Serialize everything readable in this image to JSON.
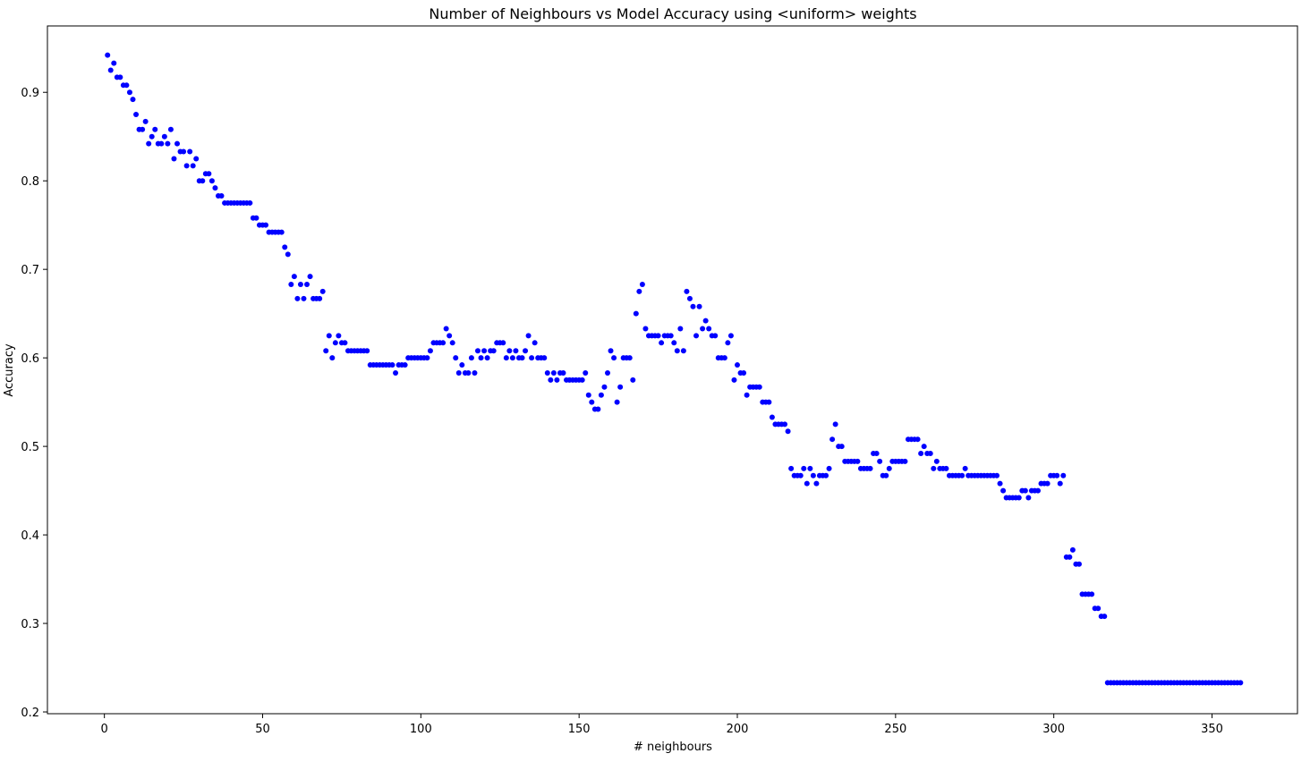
{
  "chart_data": {
    "type": "scatter",
    "title": "Number of Neighbours vs Model Accuracy using <uniform> weights",
    "xlabel": "# neighbours",
    "ylabel": "Accuracy",
    "xlim": [
      -18,
      377
    ],
    "ylim": [
      0.198,
      0.975
    ],
    "xticks": [
      0,
      50,
      100,
      150,
      200,
      250,
      300,
      350
    ],
    "yticks": [
      0.2,
      0.3,
      0.4,
      0.5,
      0.6,
      0.7,
      0.8,
      0.9
    ],
    "grid": false,
    "marker_color": "#0000ff",
    "series": [
      {
        "x": [
          1,
          2,
          3,
          4,
          5,
          6,
          7,
          8,
          9,
          10,
          11,
          12,
          13,
          14,
          15,
          16,
          17,
          18,
          19,
          20,
          21,
          22,
          23,
          24,
          25,
          26,
          27,
          28,
          29,
          30,
          31,
          32,
          33,
          34,
          35,
          36,
          37,
          38,
          39,
          40,
          41,
          42,
          43,
          44,
          45,
          46,
          47,
          48,
          49,
          50,
          51,
          52,
          53,
          54,
          55,
          56,
          57,
          58,
          59,
          60,
          61,
          62,
          63,
          64,
          65,
          66,
          67,
          68,
          69,
          70,
          71,
          72,
          73,
          74,
          75,
          76,
          77,
          78,
          79,
          80,
          81,
          82,
          83,
          84,
          85,
          86,
          87,
          88,
          89,
          90,
          91,
          92,
          93,
          94,
          95,
          96,
          97,
          98,
          99,
          100,
          101,
          102,
          103,
          104,
          105,
          106,
          107,
          108,
          109,
          110,
          111,
          112,
          113,
          114,
          115,
          116,
          117,
          118,
          119,
          120,
          121,
          122,
          123,
          124,
          125,
          126,
          127,
          128,
          129,
          130,
          131,
          132,
          133,
          134,
          135,
          136,
          137,
          138,
          139,
          140,
          141,
          142,
          143,
          144,
          145,
          146,
          147,
          148,
          149,
          150,
          151,
          152,
          153,
          154,
          155,
          156,
          157,
          158,
          159,
          160,
          161,
          162,
          163,
          164,
          165,
          166,
          167,
          168,
          169,
          170,
          171,
          172,
          173,
          174,
          175,
          176,
          177,
          178,
          179,
          180,
          181,
          182,
          183,
          184,
          185,
          186,
          187,
          188,
          189,
          190,
          191,
          192,
          193,
          194,
          195,
          196,
          197,
          198,
          199,
          200,
          201,
          202,
          203,
          204,
          205,
          206,
          207,
          208,
          209,
          210,
          211,
          212,
          213,
          214,
          215,
          216,
          217,
          218,
          219,
          220,
          221,
          222,
          223,
          224,
          225,
          226,
          227,
          228,
          229,
          230,
          231,
          232,
          233,
          234,
          235,
          236,
          237,
          238,
          239,
          240,
          241,
          242,
          243,
          244,
          245,
          246,
          247,
          248,
          249,
          250,
          251,
          252,
          253,
          254,
          255,
          256,
          257,
          258,
          259,
          260,
          261,
          262,
          263,
          264,
          265,
          266,
          267,
          268,
          269,
          270,
          271,
          272,
          273,
          274,
          275,
          276,
          277,
          278,
          279,
          280,
          281,
          282,
          283,
          284,
          285,
          286,
          287,
          288,
          289,
          290,
          291,
          292,
          293,
          294,
          295,
          296,
          297,
          298,
          299,
          300,
          301,
          302,
          303,
          304,
          305,
          306,
          307,
          308,
          309,
          310,
          311,
          312,
          313,
          314,
          315,
          316,
          317,
          318,
          319,
          320,
          321,
          322,
          323,
          324,
          325,
          326,
          327,
          328,
          329,
          330,
          331,
          332,
          333,
          334,
          335,
          336,
          337,
          338,
          339,
          340,
          341,
          342,
          343,
          344,
          345,
          346,
          347,
          348,
          349,
          350,
          351,
          352,
          353,
          354,
          355,
          356,
          357,
          358,
          359
        ],
        "y": [
          0.942,
          0.925,
          0.933,
          0.917,
          0.917,
          0.908,
          0.908,
          0.9,
          0.892,
          0.875,
          0.858,
          0.858,
          0.867,
          0.842,
          0.85,
          0.858,
          0.842,
          0.842,
          0.85,
          0.842,
          0.858,
          0.825,
          0.842,
          0.833,
          0.833,
          0.817,
          0.833,
          0.817,
          0.825,
          0.8,
          0.8,
          0.808,
          0.808,
          0.8,
          0.792,
          0.783,
          0.783,
          0.775,
          0.775,
          0.775,
          0.775,
          0.775,
          0.775,
          0.775,
          0.775,
          0.775,
          0.758,
          0.758,
          0.75,
          0.75,
          0.75,
          0.742,
          0.742,
          0.742,
          0.742,
          0.742,
          0.725,
          0.717,
          0.683,
          0.692,
          0.667,
          0.683,
          0.667,
          0.683,
          0.692,
          0.667,
          0.667,
          0.667,
          0.675,
          0.608,
          0.625,
          0.6,
          0.617,
          0.625,
          0.617,
          0.617,
          0.608,
          0.608,
          0.608,
          0.608,
          0.608,
          0.608,
          0.608,
          0.592,
          0.592,
          0.592,
          0.592,
          0.592,
          0.592,
          0.592,
          0.592,
          0.583,
          0.592,
          0.592,
          0.592,
          0.6,
          0.6,
          0.6,
          0.6,
          0.6,
          0.6,
          0.6,
          0.608,
          0.617,
          0.617,
          0.617,
          0.617,
          0.633,
          0.625,
          0.617,
          0.6,
          0.583,
          0.592,
          0.583,
          0.583,
          0.6,
          0.583,
          0.608,
          0.6,
          0.608,
          0.6,
          0.608,
          0.608,
          0.617,
          0.617,
          0.617,
          0.6,
          0.608,
          0.6,
          0.608,
          0.6,
          0.6,
          0.608,
          0.625,
          0.6,
          0.617,
          0.6,
          0.6,
          0.6,
          0.583,
          0.575,
          0.583,
          0.575,
          0.583,
          0.583,
          0.575,
          0.575,
          0.575,
          0.575,
          0.575,
          0.575,
          0.583,
          0.558,
          0.55,
          0.542,
          0.542,
          0.558,
          0.567,
          0.583,
          0.608,
          0.6,
          0.55,
          0.567,
          0.6,
          0.6,
          0.6,
          0.575,
          0.65,
          0.675,
          0.683,
          0.633,
          0.625,
          0.625,
          0.625,
          0.625,
          0.617,
          0.625,
          0.625,
          0.625,
          0.617,
          0.608,
          0.633,
          0.608,
          0.675,
          0.667,
          0.658,
          0.625,
          0.658,
          0.633,
          0.642,
          0.633,
          0.625,
          0.625,
          0.6,
          0.6,
          0.6,
          0.617,
          0.625,
          0.575,
          0.592,
          0.583,
          0.583,
          0.558,
          0.567,
          0.567,
          0.567,
          0.567,
          0.55,
          0.55,
          0.55,
          0.533,
          0.525,
          0.525,
          0.525,
          0.525,
          0.517,
          0.475,
          0.467,
          0.467,
          0.467,
          0.475,
          0.458,
          0.475,
          0.467,
          0.458,
          0.467,
          0.467,
          0.467,
          0.475,
          0.508,
          0.525,
          0.5,
          0.5,
          0.483,
          0.483,
          0.483,
          0.483,
          0.483,
          0.475,
          0.475,
          0.475,
          0.475,
          0.492,
          0.492,
          0.483,
          0.467,
          0.467,
          0.475,
          0.483,
          0.483,
          0.483,
          0.483,
          0.483,
          0.508,
          0.508,
          0.508,
          0.508,
          0.492,
          0.5,
          0.492,
          0.492,
          0.475,
          0.483,
          0.475,
          0.475,
          0.475,
          0.467,
          0.467,
          0.467,
          0.467,
          0.467,
          0.475,
          0.467,
          0.467,
          0.467,
          0.467,
          0.467,
          0.467,
          0.467,
          0.467,
          0.467,
          0.467,
          0.458,
          0.45,
          0.442,
          0.442,
          0.442,
          0.442,
          0.442,
          0.45,
          0.45,
          0.442,
          0.45,
          0.45,
          0.45,
          0.458,
          0.458,
          0.458,
          0.467,
          0.467,
          0.467,
          0.458,
          0.467,
          0.375,
          0.375,
          0.383,
          0.367,
          0.367,
          0.333,
          0.333,
          0.333,
          0.333,
          0.317,
          0.317,
          0.308,
          0.308,
          0.233,
          0.233,
          0.233,
          0.233,
          0.233,
          0.233,
          0.233,
          0.233,
          0.233,
          0.233,
          0.233,
          0.233,
          0.233,
          0.233,
          0.233,
          0.233,
          0.233,
          0.233,
          0.233,
          0.233,
          0.233,
          0.233,
          0.233,
          0.233,
          0.233,
          0.233,
          0.233,
          0.233,
          0.233,
          0.233,
          0.233,
          0.233,
          0.233,
          0.233,
          0.233,
          0.233,
          0.233,
          0.233,
          0.233,
          0.233,
          0.233,
          0.233,
          0.233
        ]
      }
    ]
  }
}
